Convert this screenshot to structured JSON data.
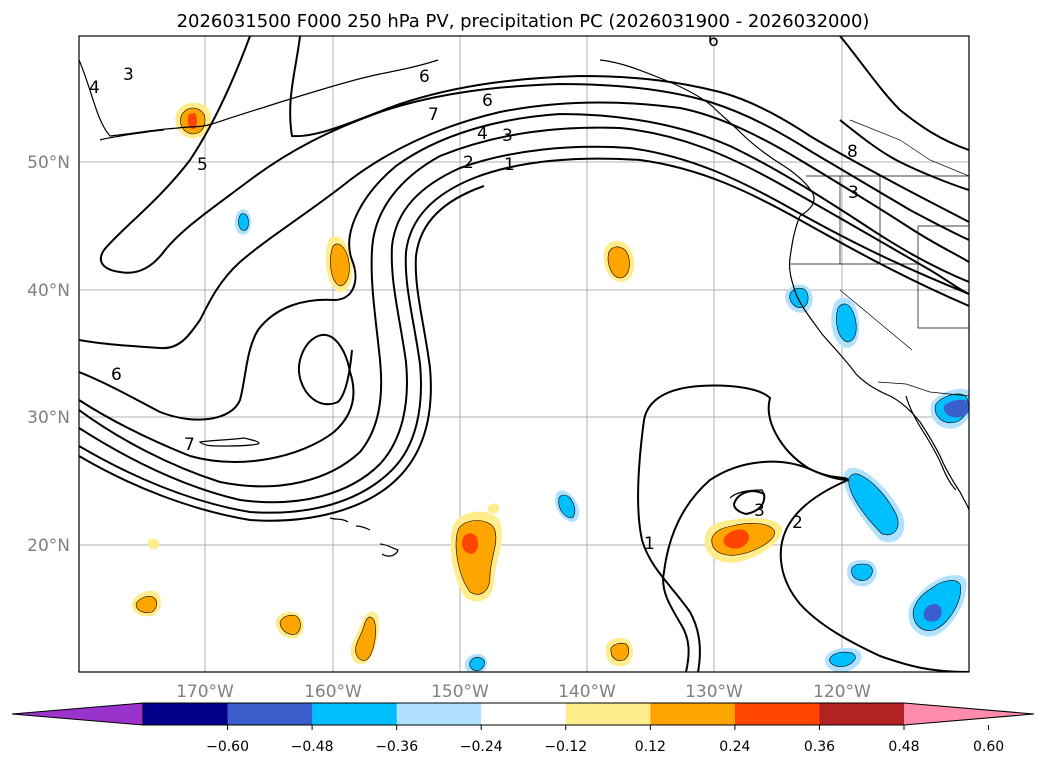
{
  "title": "2026031500 F000 250 hPa PV, precipitation PC (2026031900 - 2026032000)",
  "map": {
    "lon_labels": [
      "170°W",
      "160°W",
      "150°W",
      "140°W",
      "130°W",
      "120°W"
    ],
    "lat_labels": [
      "50°N",
      "40°N",
      "30°N",
      "20°N"
    ],
    "contour_labels": [
      "1",
      "2",
      "3",
      "4",
      "5",
      "6",
      "7",
      "8"
    ],
    "contour_color": "#000000",
    "grid": true
  },
  "colorbar": {
    "ticks": [
      "−0.60",
      "−0.48",
      "−0.36",
      "−0.24",
      "−0.12",
      "0.12",
      "0.24",
      "0.36",
      "0.48",
      "0.60"
    ],
    "colors": [
      "#9933cc",
      "#00008b",
      "#3a5fcd",
      "#00bfff",
      "#b0e2ff",
      "#ffffff",
      "#ffec8b",
      "#ffa500",
      "#ff4500",
      "#b22222",
      "#ff8cac"
    ]
  }
}
